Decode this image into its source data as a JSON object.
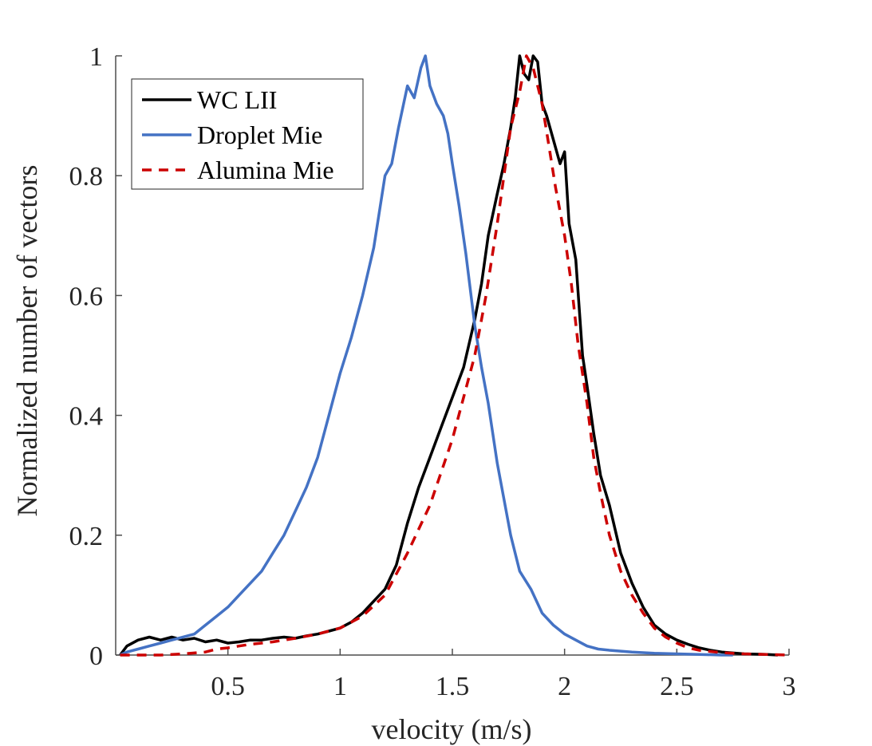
{
  "chart_data": {
    "type": "line",
    "title": "",
    "xlabel": "velocity (m/s)",
    "ylabel": "Normalized number of vectors",
    "xlim": [
      0,
      3
    ],
    "ylim": [
      0,
      1
    ],
    "xticks": [
      0.5,
      1,
      1.5,
      2,
      2.5,
      3
    ],
    "xtick_labels": [
      "0.5",
      "1",
      "1.5",
      "2",
      "2.5",
      "3"
    ],
    "yticks": [
      0,
      0.2,
      0.4,
      0.6,
      0.8,
      1
    ],
    "ytick_labels": [
      "0",
      "0.2",
      "0.4",
      "0.6",
      "0.8",
      "1"
    ],
    "grid": false,
    "legend_position": "top-left",
    "series": [
      {
        "name": "WC LII",
        "color": "#000000",
        "style": "solid",
        "x": [
          0.02,
          0.05,
          0.1,
          0.15,
          0.2,
          0.25,
          0.3,
          0.35,
          0.4,
          0.45,
          0.5,
          0.55,
          0.6,
          0.65,
          0.7,
          0.75,
          0.8,
          0.85,
          0.9,
          0.95,
          1.0,
          1.05,
          1.1,
          1.15,
          1.2,
          1.25,
          1.3,
          1.35,
          1.4,
          1.45,
          1.5,
          1.55,
          1.6,
          1.63,
          1.66,
          1.7,
          1.73,
          1.76,
          1.78,
          1.8,
          1.82,
          1.84,
          1.86,
          1.88,
          1.9,
          1.92,
          1.95,
          1.98,
          2.0,
          2.02,
          2.05,
          2.08,
          2.1,
          2.13,
          2.16,
          2.2,
          2.25,
          2.3,
          2.35,
          2.4,
          2.45,
          2.5,
          2.55,
          2.6,
          2.65,
          2.7,
          2.8,
          2.9,
          2.95
        ],
        "y": [
          0.0,
          0.015,
          0.025,
          0.03,
          0.025,
          0.03,
          0.025,
          0.028,
          0.022,
          0.025,
          0.02,
          0.022,
          0.025,
          0.025,
          0.028,
          0.03,
          0.028,
          0.032,
          0.035,
          0.04,
          0.045,
          0.055,
          0.07,
          0.09,
          0.11,
          0.15,
          0.22,
          0.28,
          0.33,
          0.38,
          0.43,
          0.48,
          0.56,
          0.62,
          0.7,
          0.77,
          0.82,
          0.88,
          0.93,
          1.0,
          0.97,
          0.96,
          1.0,
          0.99,
          0.92,
          0.9,
          0.86,
          0.82,
          0.84,
          0.72,
          0.66,
          0.5,
          0.45,
          0.37,
          0.3,
          0.25,
          0.17,
          0.12,
          0.08,
          0.05,
          0.035,
          0.025,
          0.018,
          0.012,
          0.008,
          0.005,
          0.002,
          0.001,
          0.0
        ]
      },
      {
        "name": "Droplet Mie",
        "color": "#4472C4",
        "style": "solid",
        "x": [
          0.02,
          0.05,
          0.1,
          0.15,
          0.2,
          0.25,
          0.3,
          0.35,
          0.4,
          0.45,
          0.5,
          0.55,
          0.6,
          0.65,
          0.7,
          0.75,
          0.8,
          0.85,
          0.9,
          0.95,
          1.0,
          1.05,
          1.1,
          1.15,
          1.2,
          1.23,
          1.26,
          1.3,
          1.33,
          1.36,
          1.38,
          1.4,
          1.43,
          1.46,
          1.48,
          1.5,
          1.53,
          1.56,
          1.6,
          1.63,
          1.66,
          1.7,
          1.73,
          1.76,
          1.8,
          1.85,
          1.9,
          1.95,
          2.0,
          2.05,
          2.1,
          2.15,
          2.2,
          2.3,
          2.4,
          2.5,
          2.6,
          2.7,
          2.75
        ],
        "y": [
          0.0,
          0.005,
          0.01,
          0.015,
          0.02,
          0.025,
          0.03,
          0.035,
          0.05,
          0.065,
          0.08,
          0.1,
          0.12,
          0.14,
          0.17,
          0.2,
          0.24,
          0.28,
          0.33,
          0.4,
          0.47,
          0.53,
          0.6,
          0.68,
          0.8,
          0.82,
          0.88,
          0.95,
          0.93,
          0.98,
          1.0,
          0.95,
          0.92,
          0.9,
          0.87,
          0.82,
          0.75,
          0.67,
          0.55,
          0.48,
          0.42,
          0.32,
          0.26,
          0.2,
          0.14,
          0.11,
          0.07,
          0.05,
          0.035,
          0.025,
          0.015,
          0.01,
          0.008,
          0.005,
          0.003,
          0.002,
          0.001,
          0.0,
          0.0
        ]
      },
      {
        "name": "Alumina Mie",
        "color": "#CC0000",
        "style": "dashed",
        "x": [
          0.02,
          0.1,
          0.2,
          0.3,
          0.4,
          0.45,
          0.5,
          0.55,
          0.6,
          0.7,
          0.8,
          0.9,
          1.0,
          1.1,
          1.2,
          1.3,
          1.4,
          1.5,
          1.55,
          1.6,
          1.65,
          1.7,
          1.73,
          1.76,
          1.8,
          1.83,
          1.86,
          1.9,
          1.93,
          1.96,
          2.0,
          2.03,
          2.06,
          2.1,
          2.13,
          2.16,
          2.2,
          2.25,
          2.3,
          2.35,
          2.4,
          2.45,
          2.5,
          2.55,
          2.6,
          2.7,
          2.8,
          2.9,
          3.0
        ],
        "y": [
          0.0,
          0.0,
          0.0,
          0.002,
          0.005,
          0.01,
          0.012,
          0.015,
          0.018,
          0.022,
          0.028,
          0.035,
          0.045,
          0.065,
          0.1,
          0.17,
          0.25,
          0.36,
          0.43,
          0.5,
          0.6,
          0.72,
          0.8,
          0.88,
          0.94,
          1.0,
          0.98,
          0.92,
          0.85,
          0.78,
          0.7,
          0.62,
          0.52,
          0.42,
          0.33,
          0.27,
          0.2,
          0.14,
          0.1,
          0.07,
          0.045,
          0.03,
          0.02,
          0.012,
          0.008,
          0.004,
          0.002,
          0.001,
          0.0
        ]
      }
    ]
  }
}
